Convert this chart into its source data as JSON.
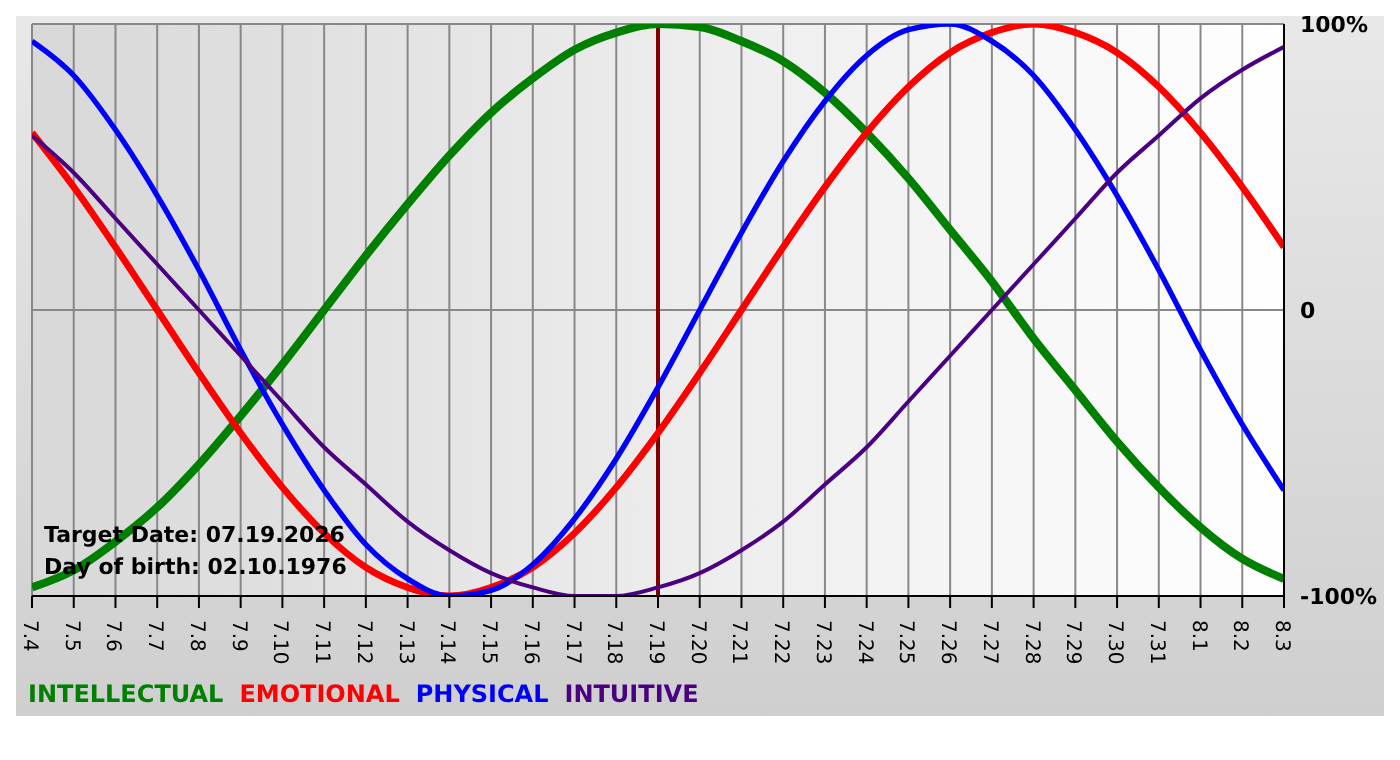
{
  "chart_data": {
    "type": "line",
    "categories": [
      "7.4",
      "7.5",
      "7.6",
      "7.7",
      "7.8",
      "7.9",
      "7.10",
      "7.11",
      "7.12",
      "7.13",
      "7.14",
      "7.15",
      "7.16",
      "7.17",
      "7.18",
      "7.19",
      "7.20",
      "7.21",
      "7.22",
      "7.23",
      "7.24",
      "7.25",
      "7.26",
      "7.27",
      "7.28",
      "7.29",
      "7.30",
      "7.31",
      "8.1",
      "8.2",
      "8.3"
    ],
    "series": [
      {
        "name": "INTELLECTUAL",
        "color": "#008000",
        "values": [
          -97,
          -91,
          -81,
          -69,
          -54,
          -37,
          -19,
          0,
          19,
          37,
          54,
          69,
          81,
          91,
          97,
          100,
          99,
          94,
          87,
          76,
          62,
          46,
          28,
          10,
          -10,
          -28,
          -46,
          -62,
          -76,
          -87,
          -94
        ]
      },
      {
        "name": "EMOTIONAL",
        "color": "#ff0000",
        "values": [
          62,
          43,
          22,
          0,
          -22,
          -43,
          -62,
          -78,
          -90,
          -97,
          -100,
          -97,
          -90,
          -78,
          -62,
          -43,
          -22,
          0,
          22,
          43,
          62,
          78,
          90,
          97,
          100,
          97,
          90,
          78,
          62,
          43,
          22
        ]
      },
      {
        "name": "PHYSICAL",
        "color": "#0000ff",
        "values": [
          94,
          82,
          63,
          40,
          14,
          -14,
          -40,
          -63,
          -82,
          -94,
          -100,
          -98,
          -89,
          -73,
          -52,
          -27,
          0,
          27,
          52,
          73,
          89,
          98,
          100,
          94,
          82,
          63,
          40,
          14,
          -14,
          -40,
          -63
        ]
      },
      {
        "name": "INTUITIVE",
        "color": "#4b0082",
        "values": [
          61,
          48,
          32,
          16,
          0,
          -16,
          -32,
          -48,
          -61,
          -74,
          -84,
          -92,
          -97,
          -100,
          -100,
          -97,
          -92,
          -84,
          -74,
          -61,
          -48,
          -32,
          -16,
          0,
          16,
          32,
          48,
          61,
          74,
          84,
          92
        ]
      }
    ],
    "ylim": [
      -100,
      100
    ],
    "yticks": [
      {
        "value": 100,
        "label": "100%"
      },
      0,
      {
        "value": -100,
        "label": "-100%"
      }
    ],
    "grid": true,
    "legend": "bottom",
    "ref_lines": [
      {
        "axis": "x",
        "value": "7.19",
        "color": "#800000"
      }
    ],
    "annotations": [
      "Target Date: 07.19.2026",
      "Day of birth: 02.10.1976"
    ]
  }
}
